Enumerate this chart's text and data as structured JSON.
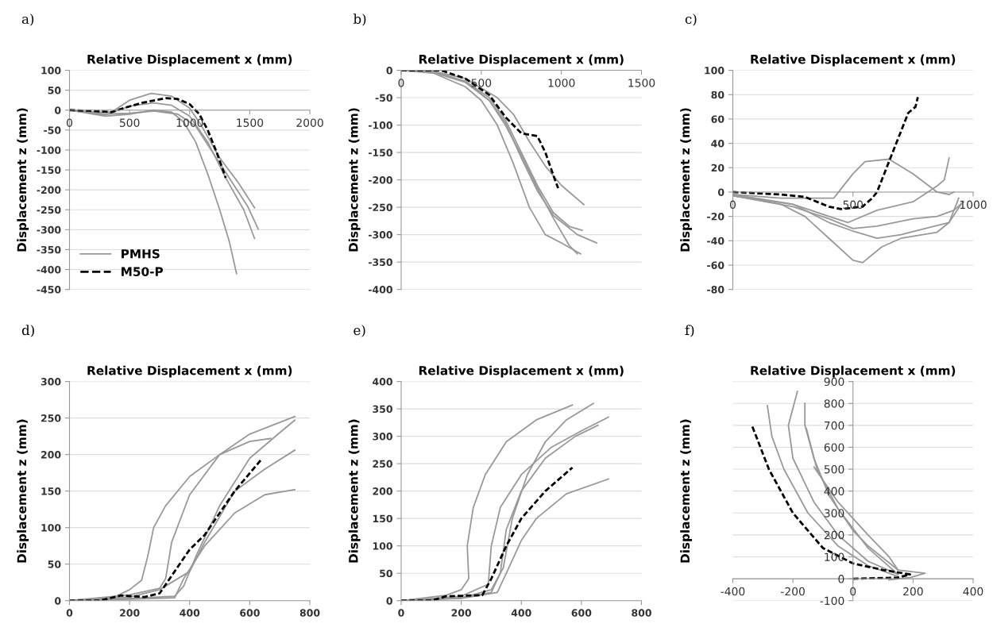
{
  "chart_data": [
    {
      "type": "line",
      "annotations": [
        "a)"
      ],
      "xlabel": "Relative Displacement x (mm)",
      "ylabel": "Displacement z (mm)",
      "xlim": [
        0,
        2000
      ],
      "ylim": [
        -450,
        100
      ],
      "xticks": [
        0,
        500,
        1000,
        1500,
        2000
      ],
      "yticks": [
        -450,
        -400,
        -350,
        -300,
        -250,
        -200,
        -150,
        -100,
        -50,
        0,
        50,
        100
      ],
      "grid": "y",
      "legend": "bottom left",
      "series": [
        {
          "name": "PMHS",
          "color": "#999999",
          "line_style": "solid",
          "x": [
            0,
            200,
            350,
            500,
            680,
            850,
            1000,
            1100,
            1250,
            1400,
            1540
          ],
          "values": [
            0,
            -5,
            -5,
            25,
            42,
            35,
            5,
            -40,
            -120,
            -180,
            -245
          ]
        },
        {
          "color": "#999999",
          "line_style": "solid",
          "x": [
            0,
            300,
            500,
            700,
            900,
            1050,
            1200,
            1350,
            1480,
            1570
          ],
          "values": [
            0,
            -10,
            -8,
            -2,
            -10,
            -40,
            -110,
            -180,
            -240,
            -298
          ]
        },
        {
          "color": "#999999",
          "line_style": "solid",
          "x": [
            0,
            300,
            500,
            700,
            850,
            1000,
            1150,
            1300,
            1450,
            1540
          ],
          "values": [
            0,
            -12,
            10,
            18,
            12,
            -15,
            -80,
            -170,
            -250,
            -322
          ]
        },
        {
          "color": "#999999",
          "line_style": "solid",
          "x": [
            0,
            300,
            500,
            700,
            850,
            950,
            1050,
            1150,
            1250,
            1330,
            1390
          ],
          "values": [
            0,
            -15,
            -10,
            0,
            -5,
            -30,
            -80,
            -160,
            -250,
            -330,
            -410
          ]
        },
        {
          "name": "M50-P",
          "color": "#000000",
          "line_style": "dashed",
          "x": [
            0,
            200,
            350,
            450,
            600,
            800,
            900,
            1000,
            1080,
            1150,
            1230,
            1300
          ],
          "values": [
            0,
            -2,
            -5,
            5,
            18,
            30,
            28,
            15,
            -10,
            -50,
            -110,
            -170
          ]
        }
      ]
    },
    {
      "type": "line",
      "annotations": [
        "b)"
      ],
      "xlabel": "Relative Displacement x (mm)",
      "ylabel": "Displacement z (mm)",
      "xlim": [
        0,
        1500
      ],
      "ylim": [
        -400,
        0
      ],
      "xticks": [
        0,
        500,
        1000,
        1500
      ],
      "yticks": [
        -400,
        -350,
        -300,
        -250,
        -200,
        -150,
        -100,
        -50,
        0
      ],
      "grid": "y",
      "series": [
        {
          "color": "#999999",
          "line_style": "solid",
          "x": [
            0,
            200,
            400,
            600,
            700,
            800,
            900,
            1000,
            1140
          ],
          "values": [
            0,
            -2,
            -15,
            -50,
            -80,
            -130,
            -175,
            -210,
            -245
          ]
        },
        {
          "color": "#999999",
          "line_style": "solid",
          "x": [
            0,
            200,
            400,
            550,
            650,
            750,
            850,
            950,
            1050,
            1130
          ],
          "values": [
            0,
            -3,
            -20,
            -50,
            -90,
            -150,
            -210,
            -260,
            -285,
            -292
          ]
        },
        {
          "color": "#999999",
          "line_style": "solid",
          "x": [
            0,
            200,
            400,
            550,
            650,
            750,
            850,
            950,
            1100,
            1220
          ],
          "values": [
            0,
            -4,
            -22,
            -55,
            -95,
            -160,
            -220,
            -265,
            -300,
            -315
          ]
        },
        {
          "color": "#999999",
          "line_style": "solid",
          "x": [
            0,
            200,
            400,
            500,
            600,
            700,
            800,
            900,
            1000,
            1120
          ],
          "values": [
            0,
            -5,
            -30,
            -55,
            -100,
            -170,
            -250,
            -300,
            -315,
            -335
          ]
        },
        {
          "color": "#999999",
          "line_style": "solid",
          "x": [
            0,
            200,
            400,
            550,
            650,
            750,
            850,
            950,
            1050,
            1100
          ],
          "values": [
            0,
            -3,
            -20,
            -55,
            -100,
            -155,
            -215,
            -270,
            -320,
            -335
          ]
        },
        {
          "color": "#000000",
          "line_style": "dashed",
          "x": [
            0,
            250,
            400,
            550,
            650,
            750,
            850,
            900,
            960,
            980
          ],
          "values": [
            0,
            0,
            -15,
            -45,
            -85,
            -115,
            -120,
            -150,
            -200,
            -215
          ]
        }
      ]
    },
    {
      "type": "line",
      "annotations": [
        "c)"
      ],
      "xlabel": "Relative Displacement x (mm)",
      "ylabel": "Displacement z (mm)",
      "xlim": [
        0,
        1000
      ],
      "ylim": [
        -80,
        100
      ],
      "xticks": [
        0,
        500,
        1000
      ],
      "yticks": [
        -80,
        -60,
        -40,
        -20,
        0,
        20,
        40,
        60,
        80,
        100
      ],
      "grid": "y",
      "series": [
        {
          "color": "#999999",
          "line_style": "solid",
          "x": [
            0,
            200,
            350,
            420,
            500,
            550,
            650,
            750,
            850,
            900,
            920
          ],
          "values": [
            -2,
            -5,
            -5,
            -5,
            15,
            25,
            27,
            15,
            0,
            -2,
            0
          ]
        },
        {
          "color": "#999999",
          "line_style": "solid",
          "x": [
            0,
            250,
            400,
            480,
            600,
            750,
            850,
            880,
            900
          ],
          "values": [
            -2,
            -10,
            -20,
            -25,
            -15,
            -8,
            5,
            10,
            28
          ]
        },
        {
          "color": "#999999",
          "line_style": "solid",
          "x": [
            0,
            250,
            400,
            500,
            600,
            750,
            850,
            920,
            960
          ],
          "values": [
            -3,
            -12,
            -22,
            -30,
            -28,
            -22,
            -20,
            -15,
            -8
          ]
        },
        {
          "color": "#999999",
          "line_style": "solid",
          "x": [
            0,
            250,
            400,
            500,
            600,
            700,
            800,
            900,
            950
          ],
          "values": [
            -3,
            -10,
            -25,
            -32,
            -38,
            -35,
            -30,
            -25,
            -10
          ]
        },
        {
          "color": "#999999",
          "line_style": "solid",
          "x": [
            0,
            200,
            300,
            400,
            500,
            540,
            620,
            700,
            850,
            900,
            940
          ],
          "values": [
            -3,
            -10,
            -20,
            -38,
            -56,
            -58,
            -45,
            -38,
            -33,
            -25,
            -5
          ]
        },
        {
          "color": "#000000",
          "line_style": "dashed",
          "x": [
            0,
            200,
            300,
            400,
            450,
            540,
            580,
            600,
            640,
            680,
            700,
            730,
            760,
            770
          ],
          "values": [
            0,
            -2,
            -4,
            -12,
            -14,
            -12,
            -5,
            0,
            20,
            40,
            50,
            65,
            70,
            78
          ]
        }
      ]
    },
    {
      "type": "line",
      "annotations": [
        "d)"
      ],
      "xlabel": "Relative Displacement x (mm)",
      "ylabel": "Displacement z (mm)",
      "xlim": [
        0,
        800
      ],
      "ylim": [
        0,
        300
      ],
      "xticks": [
        0,
        200,
        400,
        600,
        800
      ],
      "yticks": [
        0,
        50,
        100,
        150,
        200,
        250,
        300
      ],
      "grid": "y",
      "series": [
        {
          "color": "#999999",
          "line_style": "solid",
          "x": [
            0,
            150,
            200,
            240,
            260,
            280,
            320,
            400,
            500,
            600,
            670
          ],
          "values": [
            0,
            5,
            15,
            28,
            60,
            100,
            130,
            170,
            200,
            218,
            222
          ]
        },
        {
          "color": "#999999",
          "line_style": "solid",
          "x": [
            0,
            200,
            300,
            320,
            340,
            400,
            500,
            600,
            750
          ],
          "values": [
            0,
            8,
            17,
            30,
            80,
            145,
            200,
            228,
            252
          ]
        },
        {
          "color": "#999999",
          "line_style": "solid",
          "x": [
            0,
            200,
            350,
            380,
            420,
            500,
            600,
            700,
            750
          ],
          "values": [
            0,
            3,
            6,
            20,
            60,
            130,
            195,
            230,
            247
          ]
        },
        {
          "color": "#999999",
          "line_style": "solid",
          "x": [
            0,
            200,
            300,
            400,
            450,
            550,
            650,
            750
          ],
          "values": [
            0,
            5,
            15,
            40,
            80,
            150,
            180,
            206
          ]
        },
        {
          "color": "#999999",
          "line_style": "solid",
          "x": [
            0,
            200,
            350,
            380,
            450,
            550,
            650,
            750
          ],
          "values": [
            0,
            2,
            4,
            30,
            75,
            120,
            145,
            152
          ]
        },
        {
          "color": "#000000",
          "line_style": "dashed",
          "x": [
            0,
            100,
            170,
            250,
            300,
            350,
            400,
            450,
            500,
            550,
            640
          ],
          "values": [
            0,
            0,
            7,
            5,
            10,
            40,
            70,
            90,
            120,
            150,
            194
          ]
        }
      ]
    },
    {
      "type": "line",
      "annotations": [
        "e)"
      ],
      "xlabel": "Relative Displacement x (mm)",
      "ylabel": "Displacement z (mm)",
      "xlim": [
        0,
        800
      ],
      "ylim": [
        0,
        400
      ],
      "xticks": [
        0,
        200,
        400,
        600,
        800
      ],
      "yticks": [
        0,
        50,
        100,
        150,
        200,
        250,
        300,
        350,
        400
      ],
      "grid": "y",
      "series": [
        {
          "color": "#999999",
          "line_style": "solid",
          "x": [
            0,
            150,
            200,
            225,
            220,
            240,
            280,
            350,
            450,
            570
          ],
          "values": [
            0,
            10,
            20,
            40,
            100,
            170,
            230,
            290,
            330,
            357
          ]
        },
        {
          "color": "#999999",
          "line_style": "solid",
          "x": [
            0,
            200,
            300,
            340,
            370,
            420,
            480,
            550,
            640
          ],
          "values": [
            0,
            5,
            20,
            60,
            150,
            230,
            290,
            330,
            360
          ]
        },
        {
          "color": "#999999",
          "line_style": "solid",
          "x": [
            0,
            200,
            290,
            300,
            330,
            400,
            500,
            600,
            690
          ],
          "values": [
            0,
            8,
            30,
            100,
            170,
            230,
            280,
            310,
            335
          ]
        },
        {
          "color": "#999999",
          "line_style": "solid",
          "x": [
            0,
            200,
            300,
            330,
            350,
            400,
            480,
            580,
            655
          ],
          "values": [
            0,
            5,
            15,
            50,
            130,
            200,
            260,
            300,
            320
          ]
        },
        {
          "color": "#999999",
          "line_style": "solid",
          "x": [
            0,
            200,
            320,
            350,
            400,
            450,
            550,
            690
          ],
          "values": [
            0,
            4,
            15,
            50,
            110,
            150,
            195,
            222
          ]
        },
        {
          "color": "#000000",
          "line_style": "dashed",
          "x": [
            0,
            100,
            150,
            270,
            300,
            350,
            400,
            480,
            570
          ],
          "values": [
            0,
            0,
            8,
            10,
            40,
            100,
            150,
            200,
            243
          ]
        }
      ]
    },
    {
      "type": "line",
      "annotations": [
        "f)"
      ],
      "xlabel": "Relative Displacement x (mm)",
      "ylabel": "Displacement z (mm)",
      "xlim": [
        -400,
        400
      ],
      "ylim": [
        -100,
        900
      ],
      "xticks": [
        -400,
        -200,
        0,
        200,
        400
      ],
      "yticks": [
        -100,
        0,
        100,
        200,
        300,
        400,
        500,
        600,
        700,
        800,
        900
      ],
      "grid": "y",
      "series": [
        {
          "color": "#999999",
          "line_style": "solid",
          "x": [
            150,
            50,
            -50,
            -130,
            -200,
            -215,
            -185
          ],
          "values": [
            20,
            80,
            200,
            350,
            550,
            700,
            855
          ]
        },
        {
          "color": "#999999",
          "line_style": "solid",
          "x": [
            150,
            50,
            -50,
            -150,
            -230,
            -270,
            -285
          ],
          "values": [
            10,
            60,
            150,
            300,
            500,
            650,
            790
          ]
        },
        {
          "color": "#999999",
          "line_style": "solid",
          "x": [
            120,
            190,
            240,
            150,
            50,
            0,
            -80,
            -130,
            -160,
            -160
          ],
          "values": [
            -5,
            5,
            25,
            40,
            150,
            220,
            380,
            550,
            700,
            800
          ]
        },
        {
          "color": "#999999",
          "line_style": "solid",
          "x": [
            150,
            50,
            -50,
            -120,
            -155
          ],
          "values": [
            20,
            140,
            320,
            500,
            685
          ]
        },
        {
          "color": "#999999",
          "line_style": "solid",
          "x": [
            150,
            120,
            50,
            -50,
            -130
          ],
          "values": [
            40,
            100,
            200,
            350,
            510
          ]
        },
        {
          "color": "#000000",
          "line_style": "dashed",
          "x": [
            0,
            150,
            190,
            100,
            0,
            -100,
            -200,
            -280,
            -335
          ],
          "values": [
            0,
            5,
            20,
            40,
            70,
            140,
            300,
            500,
            695
          ]
        }
      ]
    }
  ]
}
